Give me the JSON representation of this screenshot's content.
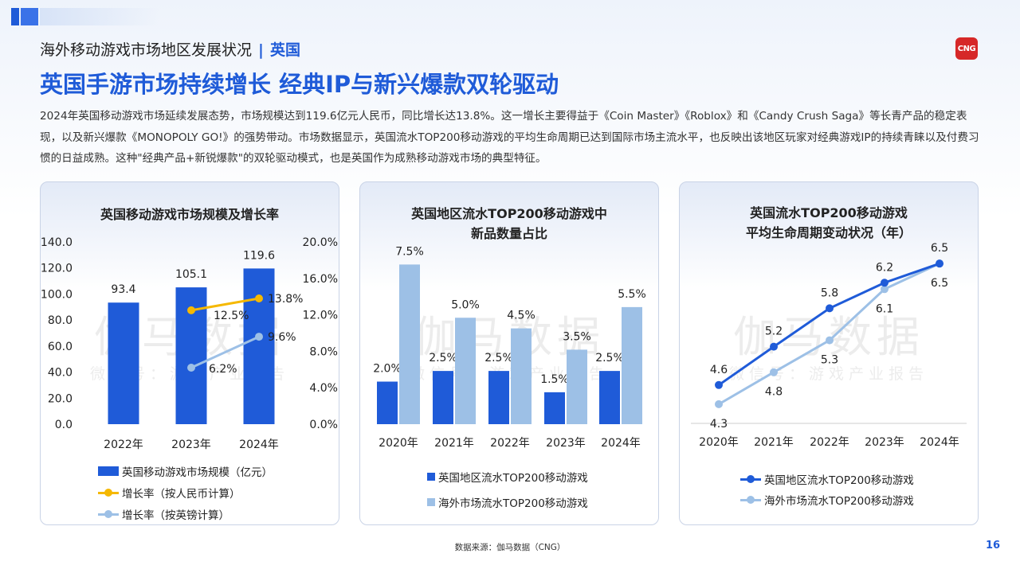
{
  "header": {
    "section_title": "海外移动游戏市场地区发展状况",
    "separator": "|",
    "region": "英国",
    "logo_text": "CNG",
    "headline": "英国手游市场持续增长 经典IP与新兴爆款双轮驱动"
  },
  "intro": "2024年英国移动游戏市场延续发展态势，市场规模达到119.6亿元人民币，同比增长达13.8%。这一增长主要得益于《Coin Master》《Roblox》和《Candy Crush Saga》等长青产品的稳定表现，以及新兴爆款《MONOPOLY GO!》的强势带动。市场数据显示，英国流水TOP200移动游戏的平均生命周期已达到国际市场主流水平，也反映出该地区玩家对经典游戏IP的持续青睐以及付费习惯的日益成熟。这种\"经典产品+新锐爆款\"的双轮驱动模式，也是英国作为成熟移动游戏市场的典型特征。",
  "watermark": {
    "main": "伽马数据",
    "sub": "微信号：游戏产业报告"
  },
  "footer": {
    "source": "数据来源：伽马数据（CNG）",
    "page": "16"
  },
  "colors": {
    "primary": "#1f5bd8",
    "secondary": "#9dc0e6",
    "growth_rmb": "#f5b800",
    "growth_gbp": "#9dc0e6"
  },
  "chart_data": [
    {
      "type": "bar",
      "title": "英国移动游戏市场规模及增长率",
      "categories": [
        "2022年",
        "2023年",
        "2024年"
      ],
      "ylim": [
        0,
        140
      ],
      "yticks": [
        "0.0",
        "20.0",
        "40.0",
        "60.0",
        "80.0",
        "100.0",
        "120.0",
        "140.0"
      ],
      "y2lim": [
        0,
        20
      ],
      "y2ticks": [
        "0.0%",
        "4.0%",
        "8.0%",
        "12.0%",
        "16.0%",
        "20.0%"
      ],
      "bar_series": {
        "name": "英国移动游戏市场规模（亿元）",
        "values": [
          93.4,
          105.1,
          119.6
        ],
        "labels": [
          "93.4",
          "105.1",
          "119.6"
        ]
      },
      "line_series": [
        {
          "name": "增长率（按人民币计算）",
          "values": [
            null,
            12.5,
            13.8
          ],
          "labels": [
            "",
            "12.5%",
            "13.8%"
          ]
        },
        {
          "name": "增长率（按英镑计算）",
          "values": [
            null,
            6.2,
            9.6
          ],
          "labels": [
            "",
            "6.2%",
            "9.6%"
          ]
        }
      ],
      "legend_position": "bottom"
    },
    {
      "type": "bar",
      "title_lines": [
        "英国地区流水TOP200移动游戏中",
        "新品数量占比"
      ],
      "categories": [
        "2020年",
        "2021年",
        "2022年",
        "2023年",
        "2024年"
      ],
      "ylim": [
        0,
        8
      ],
      "series": [
        {
          "name": "英国地区流水TOP200移动游戏",
          "values": [
            2.0,
            2.5,
            2.5,
            1.5,
            2.5
          ],
          "labels": [
            "2.0%",
            "2.5%",
            "2.5%",
            "1.5%",
            "2.5%"
          ]
        },
        {
          "name": "海外市场流水TOP200移动游戏",
          "values": [
            7.5,
            5.0,
            4.5,
            3.5,
            5.5
          ],
          "labels": [
            "7.5%",
            "5.0%",
            "4.5%",
            "3.5%",
            "5.5%"
          ]
        }
      ],
      "legend_position": "bottom"
    },
    {
      "type": "line",
      "title_lines": [
        "英国流水TOP200移动游戏",
        "平均生命周期变动状况（年）"
      ],
      "categories": [
        "2020年",
        "2021年",
        "2022年",
        "2023年",
        "2024年"
      ],
      "ylim": [
        4,
        7
      ],
      "series": [
        {
          "name": "英国地区流水TOP200移动游戏",
          "values": [
            4.6,
            5.2,
            5.8,
            6.2,
            6.5
          ],
          "labels": [
            "4.6",
            "5.2",
            "5.8",
            "6.2",
            "6.5"
          ]
        },
        {
          "name": "海外市场流水TOP200移动游戏",
          "values": [
            4.3,
            4.8,
            5.3,
            6.1,
            6.5
          ],
          "labels": [
            "4.3",
            "4.8",
            "5.3",
            "6.1",
            "6.5"
          ]
        }
      ],
      "legend_position": "bottom"
    }
  ]
}
